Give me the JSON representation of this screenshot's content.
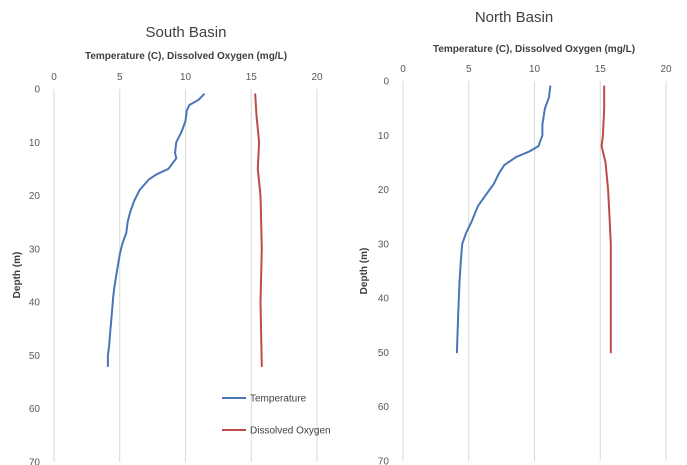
{
  "chart_data": [
    {
      "type": "line",
      "title": "South Basin",
      "xlabel": "Temperature  (C), Dissolved  Oxygen  (mg/L)",
      "ylabel": "Depth (m)",
      "xlim": [
        0,
        20
      ],
      "ylim": [
        0,
        70
      ],
      "y_inverted": true,
      "x_axis_position": "top",
      "grid": "vertical",
      "x_ticks": [
        "0",
        "5",
        "10",
        "15",
        "20"
      ],
      "y_ticks": [
        "0",
        "10",
        "20",
        "30",
        "40",
        "50",
        "60",
        "70"
      ],
      "legend": {
        "placement": "bottom-right"
      },
      "series": [
        {
          "name": "Temperature",
          "color": "#4a76b8",
          "points": [
            [
              11.4,
              1
            ],
            [
              11,
              2
            ],
            [
              10.3,
              3
            ],
            [
              10.1,
              4
            ],
            [
              10,
              6
            ],
            [
              9.7,
              8
            ],
            [
              9.3,
              10
            ],
            [
              9.2,
              12
            ],
            [
              9.3,
              13
            ],
            [
              8.7,
              15
            ],
            [
              7.8,
              16
            ],
            [
              7.2,
              17
            ],
            [
              6.5,
              19
            ],
            [
              6.1,
              21
            ],
            [
              5.8,
              23
            ],
            [
              5.6,
              25
            ],
            [
              5.5,
              27
            ],
            [
              5.2,
              29
            ],
            [
              5,
              31
            ],
            [
              4.8,
              34
            ],
            [
              4.6,
              37
            ],
            [
              4.5,
              39
            ],
            [
              4.4,
              42
            ],
            [
              4.3,
              45
            ],
            [
              4.2,
              48
            ],
            [
              4.1,
              50
            ],
            [
              4.1,
              52
            ]
          ]
        },
        {
          "name": "Dissolved Oxygen",
          "color": "#be4b48",
          "points": [
            [
              15.3,
              1
            ],
            [
              15.4,
              5
            ],
            [
              15.6,
              10
            ],
            [
              15.5,
              15
            ],
            [
              15.7,
              20
            ],
            [
              15.8,
              30
            ],
            [
              15.7,
              40
            ],
            [
              15.8,
              52
            ]
          ]
        }
      ]
    },
    {
      "type": "line",
      "title": "North Basin",
      "xlabel": "Temperature  (C), Dissolved  Oxygen  (mg/L)",
      "ylabel": "Depth (m)",
      "xlim": [
        0,
        20
      ],
      "ylim": [
        0,
        70
      ],
      "y_inverted": true,
      "x_axis_position": "top",
      "grid": "vertical",
      "x_ticks": [
        "0",
        "5",
        "10",
        "15",
        "20"
      ],
      "y_ticks": [
        "0",
        "10",
        "20",
        "30",
        "40",
        "50",
        "60",
        "70"
      ],
      "series": [
        {
          "name": "Temperature",
          "color": "#4a76b8",
          "points": [
            [
              11.2,
              1
            ],
            [
              11.1,
              3
            ],
            [
              10.8,
              5
            ],
            [
              10.6,
              8
            ],
            [
              10.6,
              10
            ],
            [
              10.3,
              12
            ],
            [
              9.6,
              13
            ],
            [
              8.6,
              14
            ],
            [
              7.7,
              15.5
            ],
            [
              7.3,
              17
            ],
            [
              6.9,
              19
            ],
            [
              6.3,
              21
            ],
            [
              5.7,
              23
            ],
            [
              5.2,
              26
            ],
            [
              4.8,
              28
            ],
            [
              4.5,
              30
            ],
            [
              4.4,
              33
            ],
            [
              4.3,
              37
            ],
            [
              4.2,
              43
            ],
            [
              4.1,
              50
            ]
          ]
        },
        {
          "name": "Dissolved Oxygen",
          "color": "#be4b48",
          "points": [
            [
              15.3,
              1
            ],
            [
              15.3,
              5
            ],
            [
              15.2,
              10
            ],
            [
              15.1,
              12
            ],
            [
              15.4,
              15
            ],
            [
              15.6,
              20
            ],
            [
              15.7,
              25
            ],
            [
              15.8,
              30
            ],
            [
              15.8,
              40
            ],
            [
              15.8,
              50
            ]
          ]
        }
      ]
    }
  ]
}
